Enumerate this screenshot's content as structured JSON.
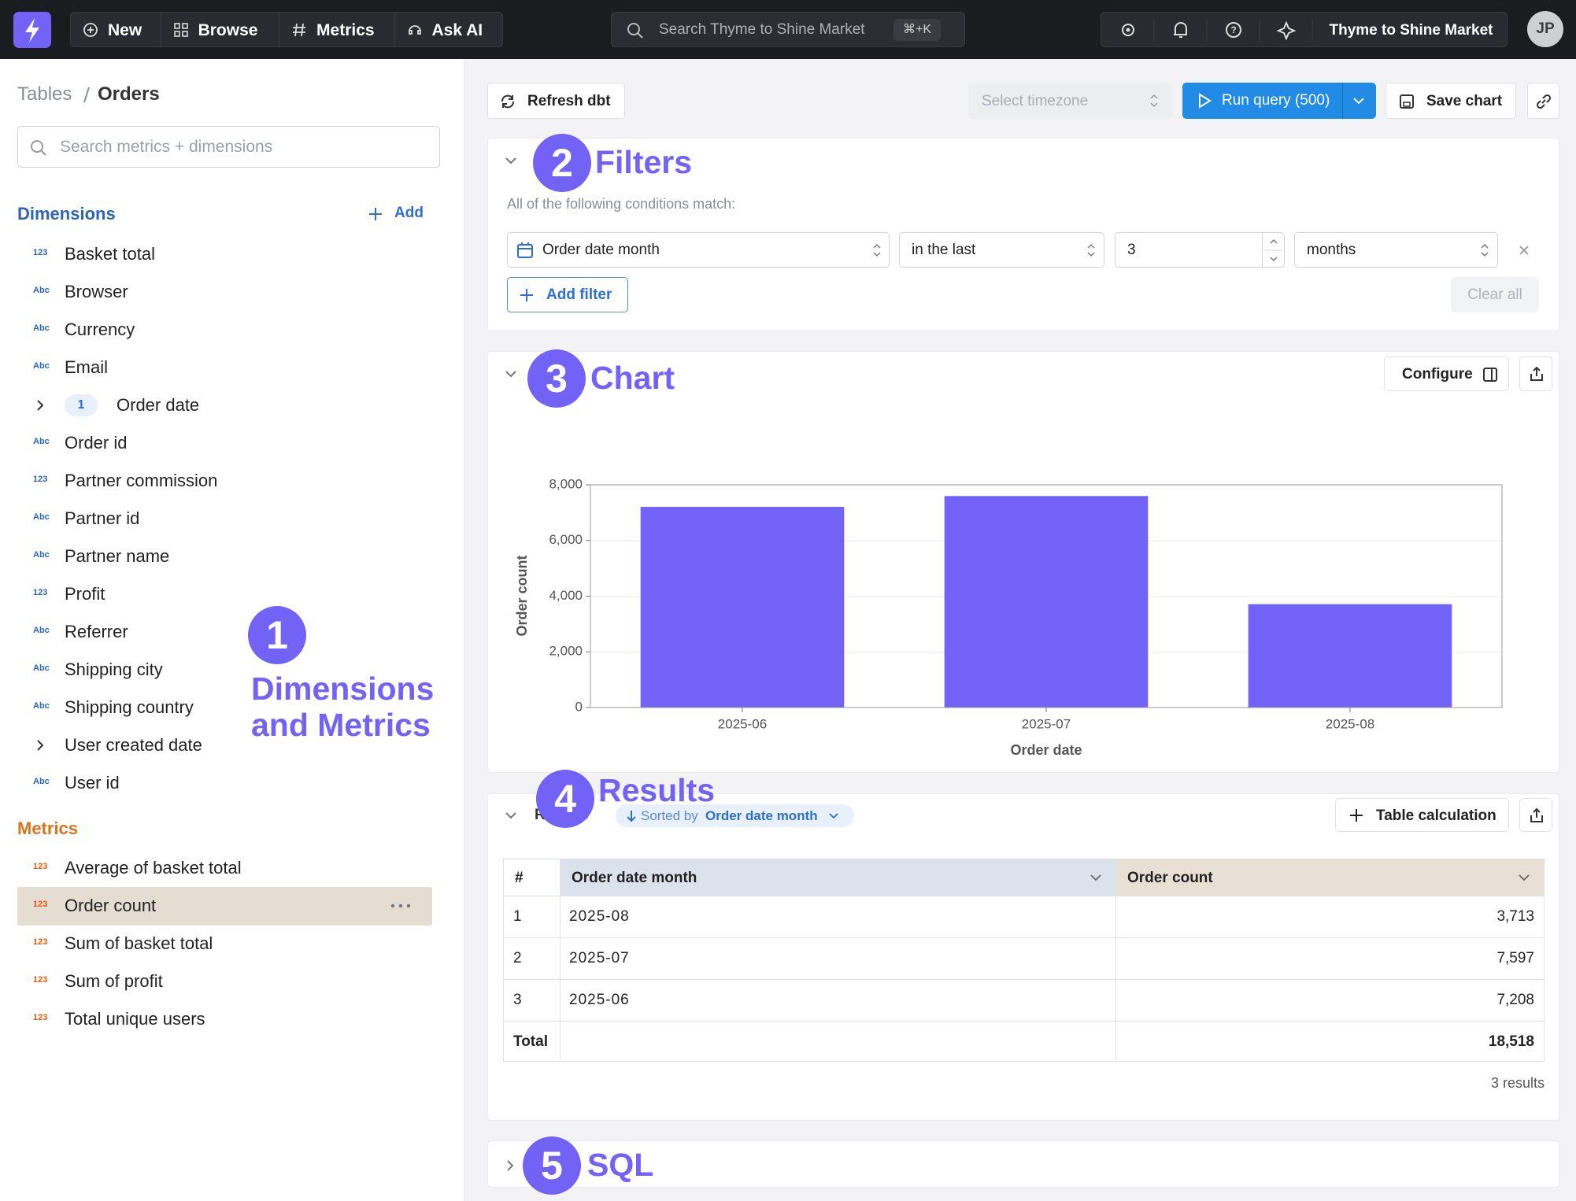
{
  "nav": {
    "items": [
      "New",
      "Browse",
      "Metrics",
      "Ask AI"
    ],
    "search": "Search Thyme to Shine Market",
    "shortcut": "⌘+K",
    "org": "Thyme to Shine Market",
    "avatar": "JP"
  },
  "sidebar": {
    "breadcrumb": [
      "Tables",
      "Orders"
    ],
    "search": "Search metrics + dimensions",
    "dimensions_title": "Dimensions",
    "add": "Add",
    "dimensions": [
      {
        "type": "123",
        "label": "Basket total"
      },
      {
        "type": "Abc",
        "label": "Browser"
      },
      {
        "type": "Abc",
        "label": "Currency"
      },
      {
        "type": "Abc",
        "label": "Email"
      },
      {
        "count": "1",
        "label": "Order date"
      },
      {
        "type": "Abc",
        "label": "Order id"
      },
      {
        "type": "123",
        "label": "Partner commission"
      },
      {
        "type": "Abc",
        "label": "Partner id"
      },
      {
        "type": "Abc",
        "label": "Partner name"
      },
      {
        "type": "123",
        "label": "Profit"
      },
      {
        "type": "Abc",
        "label": "Referrer"
      },
      {
        "type": "Abc",
        "label": "Shipping city"
      },
      {
        "type": "Abc",
        "label": "Shipping country"
      },
      {
        "label": "User created date"
      },
      {
        "type": "Abc",
        "label": "User id"
      }
    ],
    "metrics_title": "Metrics",
    "metrics": [
      {
        "type": "123",
        "label": "Average of basket total"
      },
      {
        "type": "123",
        "label": "Order count"
      },
      {
        "type": "123",
        "label": "Sum of basket total"
      },
      {
        "type": "123",
        "label": "Sum of profit"
      },
      {
        "type": "123",
        "label": "Total unique users"
      }
    ]
  },
  "toolbar": {
    "refresh": "Refresh dbt",
    "timezone": "Select timezone",
    "run": "Run query (500)",
    "save": "Save chart"
  },
  "filters": {
    "subtitle": "All of the following conditions match:",
    "field": "Order date month",
    "operator": "in the last",
    "value": "3",
    "unit": "months",
    "add": "Add filter",
    "clear": "Clear all"
  },
  "chart_panel": {
    "configure": "Configure"
  },
  "chart_data": {
    "type": "bar",
    "x_label": "Order date",
    "y_label": "Order count",
    "categories": [
      "2025-06",
      "2025-07",
      "2025-08"
    ],
    "values": [
      7208,
      7597,
      3713
    ],
    "color": "#7262f5",
    "ylim": [
      0,
      8000
    ],
    "yticks": [
      0,
      {
        "value": 2000,
        "label": "2,000"
      },
      {
        "value": 4000,
        "label": "4,000"
      },
      {
        "value": 6000,
        "label": "6,000"
      },
      {
        "value": 8000,
        "label": "8,000"
      }
    ],
    "grid": true
  },
  "results": {
    "title": "Results",
    "sorted_by": "Sorted by",
    "sort_field": "Order date month",
    "table_calc": "Table calculation",
    "columns": [
      "#",
      "Order date month",
      "Order count"
    ],
    "rows": [
      [
        "1",
        "2025-08",
        "3,713"
      ],
      [
        "2",
        "2025-07",
        "7,597"
      ],
      [
        "3",
        "2025-06",
        "7,208"
      ]
    ],
    "total": [
      "Total",
      "18,518"
    ],
    "count": "3 results"
  },
  "annotations": [
    {
      "number": "1",
      "label": "Dimensions and Metrics"
    },
    {
      "number": "2",
      "label": "Filters"
    },
    {
      "number": "3",
      "label": "Chart"
    },
    {
      "number": "4",
      "label": "Results"
    },
    {
      "number": "5",
      "label": "SQL"
    }
  ]
}
